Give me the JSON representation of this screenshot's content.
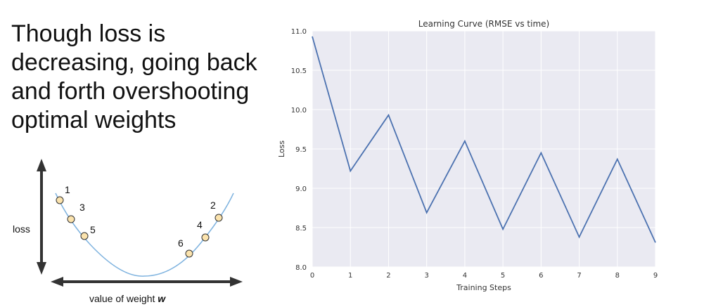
{
  "headline": {
    "lines": [
      "Though loss is",
      "decreasing, going back",
      "and forth overshooting",
      "optimal weights"
    ]
  },
  "diagram": {
    "y_label": "loss",
    "x_label_prefix": "value of weight ",
    "x_label_var": "w",
    "points": [
      "1",
      "3",
      "5",
      "2",
      "4",
      "6"
    ]
  },
  "colors": {
    "plot_bg": "#eaeaf2",
    "grid": "#ffffff",
    "line": "#4c72b0",
    "curve": "#7fb3df",
    "point_fill": "#fbe3ad",
    "arrow": "#333333"
  },
  "chart_data": {
    "type": "line",
    "title": "Learning Curve (RMSE vs time)",
    "xlabel": "Training Steps",
    "ylabel": "Loss",
    "xlim": [
      0,
      9
    ],
    "ylim": [
      8.0,
      11.0
    ],
    "xticks": [
      "0",
      "1",
      "2",
      "3",
      "4",
      "5",
      "6",
      "7",
      "8",
      "9"
    ],
    "yticks": [
      "8.0",
      "8.5",
      "9.0",
      "9.5",
      "10.0",
      "10.5",
      "11.0"
    ],
    "grid": true,
    "x": [
      0,
      1,
      2,
      3,
      4,
      5,
      6,
      7,
      8,
      9
    ],
    "series": [
      {
        "values": [
          10.93,
          9.22,
          9.93,
          8.69,
          9.6,
          8.48,
          9.45,
          8.38,
          9.37,
          8.31
        ]
      }
    ]
  }
}
